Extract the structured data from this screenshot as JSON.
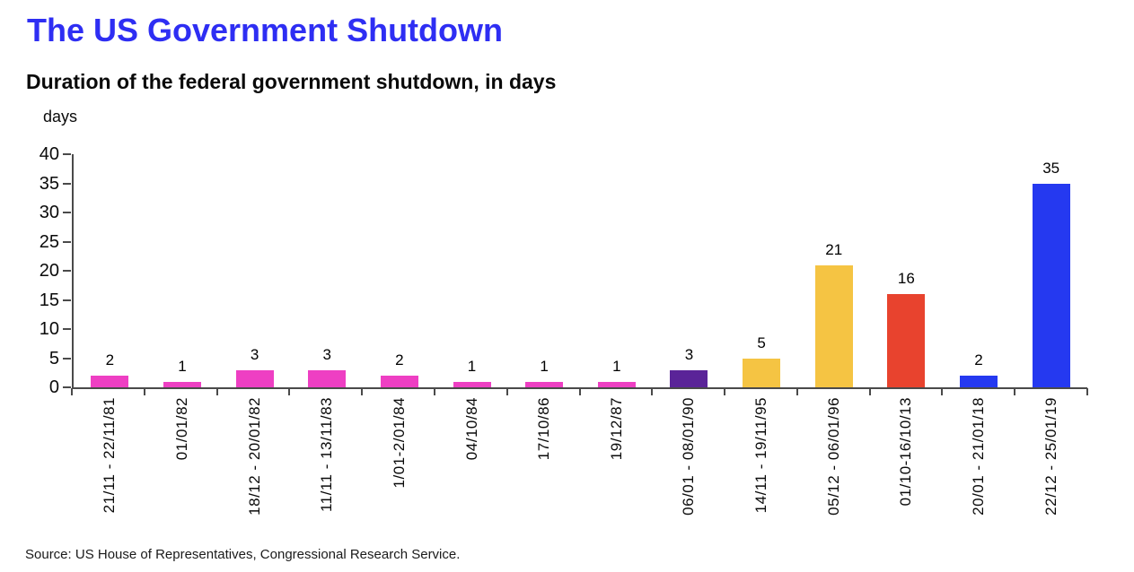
{
  "page": {
    "title": "The US Government Shutdown",
    "subtitle": "Duration of the federal government shutdown, in days",
    "unit_label": "days",
    "source": "Source: US House of Representatives, Congressional Research Service."
  },
  "colors": {
    "title_blue": "#2E2EF3",
    "axis_gray": "#4A4A4A",
    "pink": "#EE3FC3",
    "purple": "#5A2498",
    "yellow": "#F5C443",
    "red": "#E8432E",
    "blue": "#2539F0"
  },
  "chart_data": {
    "type": "bar",
    "title": "The US Government Shutdown",
    "subtitle": "Duration of the federal government shutdown, in days",
    "ylabel": "days",
    "xlabel": "",
    "ylim": [
      0,
      40
    ],
    "yticks": [
      0,
      5,
      10,
      15,
      20,
      25,
      30,
      35,
      40
    ],
    "grid": false,
    "legend_position": "none",
    "categories": [
      "21/11 - 22/11/81",
      "01/01/82",
      "18/12 - 20/01/82",
      "11/11 - 13/11/83",
      "1/01-2/01/84",
      "04/10/84",
      "17/10/86",
      "19/12/87",
      "06/01 - 08/01/90",
      "14/11 - 19/11/95",
      "05/12 - 06/01/96",
      "01/10-16/10/13",
      "20/01 - 21/01/18",
      "22/12 - 25/01/19"
    ],
    "values": [
      2,
      1,
      3,
      3,
      2,
      1,
      1,
      1,
      3,
      5,
      21,
      16,
      2,
      35
    ],
    "bar_colors": [
      "#EE3FC3",
      "#EE3FC3",
      "#EE3FC3",
      "#EE3FC3",
      "#EE3FC3",
      "#EE3FC3",
      "#EE3FC3",
      "#EE3FC3",
      "#5A2498",
      "#F5C443",
      "#F5C443",
      "#E8432E",
      "#2539F0",
      "#2539F0"
    ]
  }
}
